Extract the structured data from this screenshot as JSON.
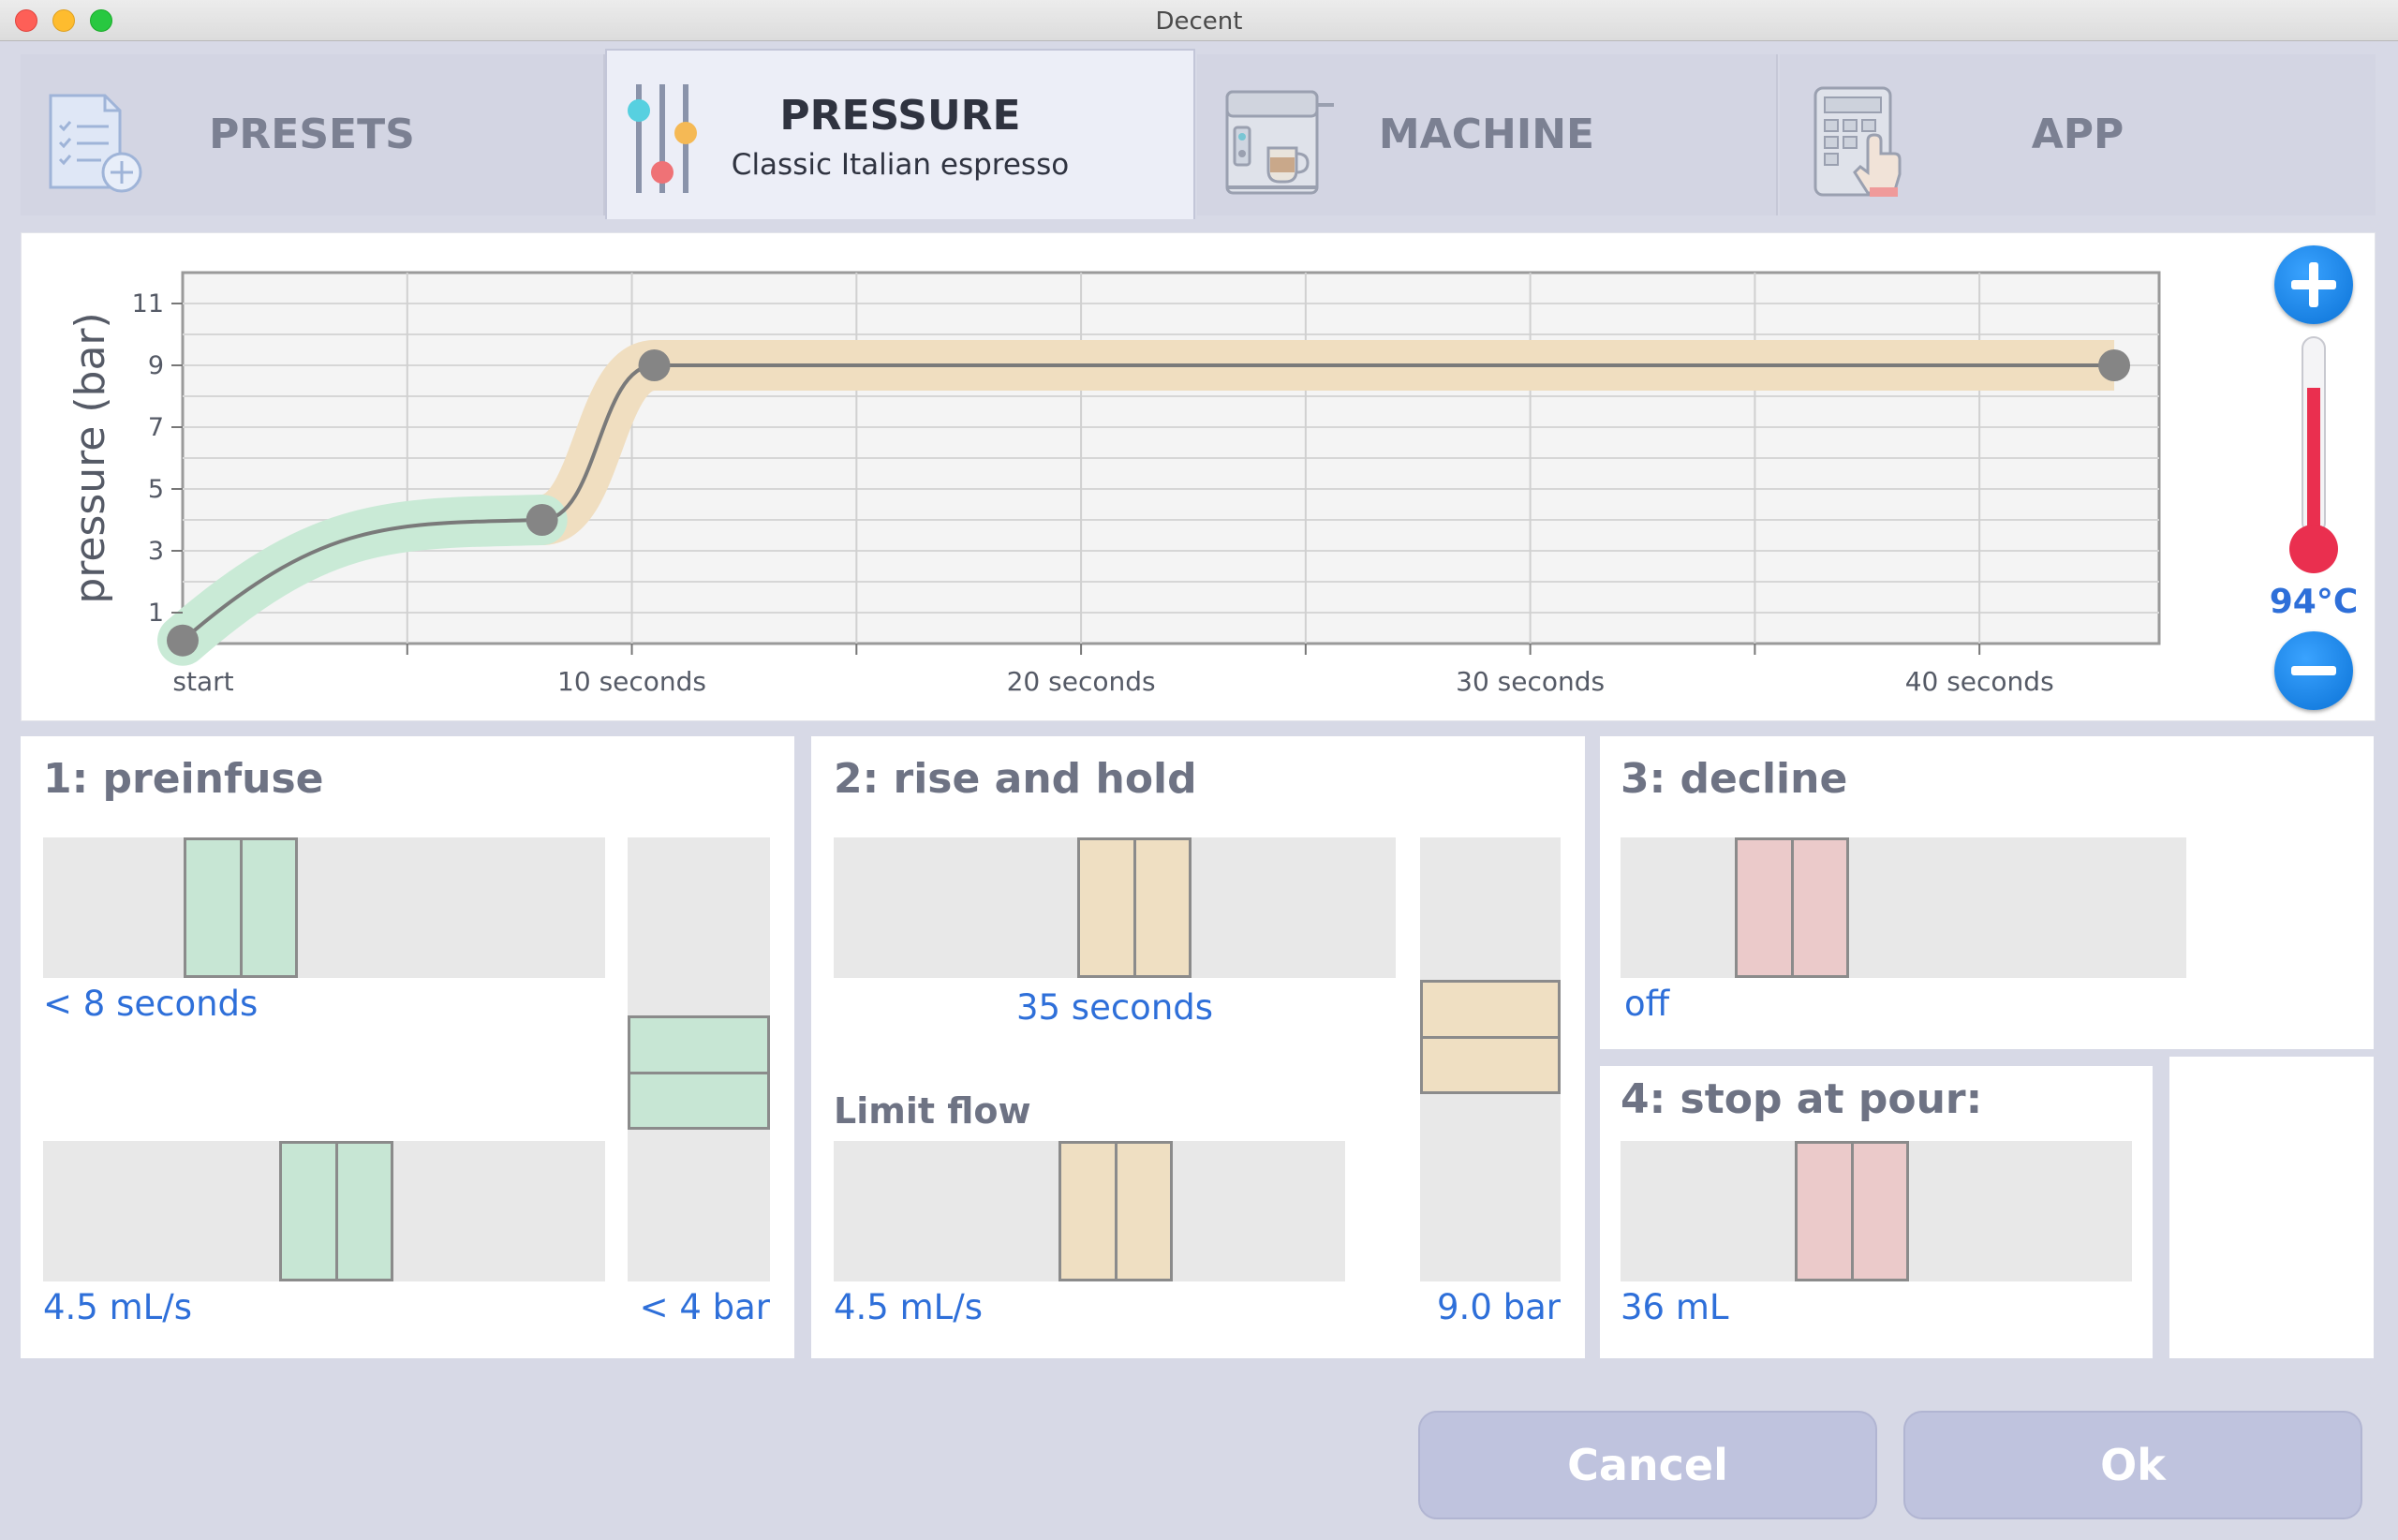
{
  "window": {
    "title": "Decent"
  },
  "tabs": [
    {
      "label": "PRESETS",
      "sub": ""
    },
    {
      "label": "PRESSURE",
      "sub": "Classic Italian espresso"
    },
    {
      "label": "MACHINE",
      "sub": ""
    },
    {
      "label": "APP",
      "sub": ""
    }
  ],
  "chart_data": {
    "type": "line",
    "title": "",
    "ylabel": "pressure (bar)",
    "xlabel": "",
    "ylim": [
      0,
      12
    ],
    "xlim": [
      0,
      44
    ],
    "yticks": [
      1,
      3,
      5,
      7,
      9,
      11
    ],
    "xticks": [
      {
        "value": 0,
        "label": "start"
      },
      {
        "value": 10,
        "label": "10 seconds"
      },
      {
        "value": 20,
        "label": "20 seconds"
      },
      {
        "value": 30,
        "label": "30 seconds"
      },
      {
        "value": 40,
        "label": "40 seconds"
      }
    ],
    "grid": true,
    "series": [
      {
        "points": [
          {
            "x": 0,
            "y": 0.1
          },
          {
            "x": 8,
            "y": 4
          },
          {
            "x": 10.5,
            "y": 9
          },
          {
            "x": 43,
            "y": 9
          }
        ]
      }
    ],
    "step_colors": [
      "#c9ead6",
      "#f0dec0"
    ]
  },
  "temperature": {
    "label": "94°C",
    "fill_fraction": 0.78
  },
  "steps": {
    "preinfuse": {
      "title": "1: preinfuse",
      "time_value": "< 8 seconds",
      "flow_value": "4.5 mL/s",
      "pressure_value": "< 4 bar"
    },
    "rise_hold": {
      "title": "2: rise and hold",
      "time_value": "35 seconds",
      "limit_label": "Limit flow",
      "flow_value": "4.5 mL/s",
      "pressure_value": "9.0 bar"
    },
    "decline": {
      "title": "3: decline",
      "value": "off"
    },
    "stop": {
      "title": "4: stop at pour:",
      "value": "36 mL"
    }
  },
  "buttons": {
    "cancel": "Cancel",
    "ok": "Ok"
  }
}
